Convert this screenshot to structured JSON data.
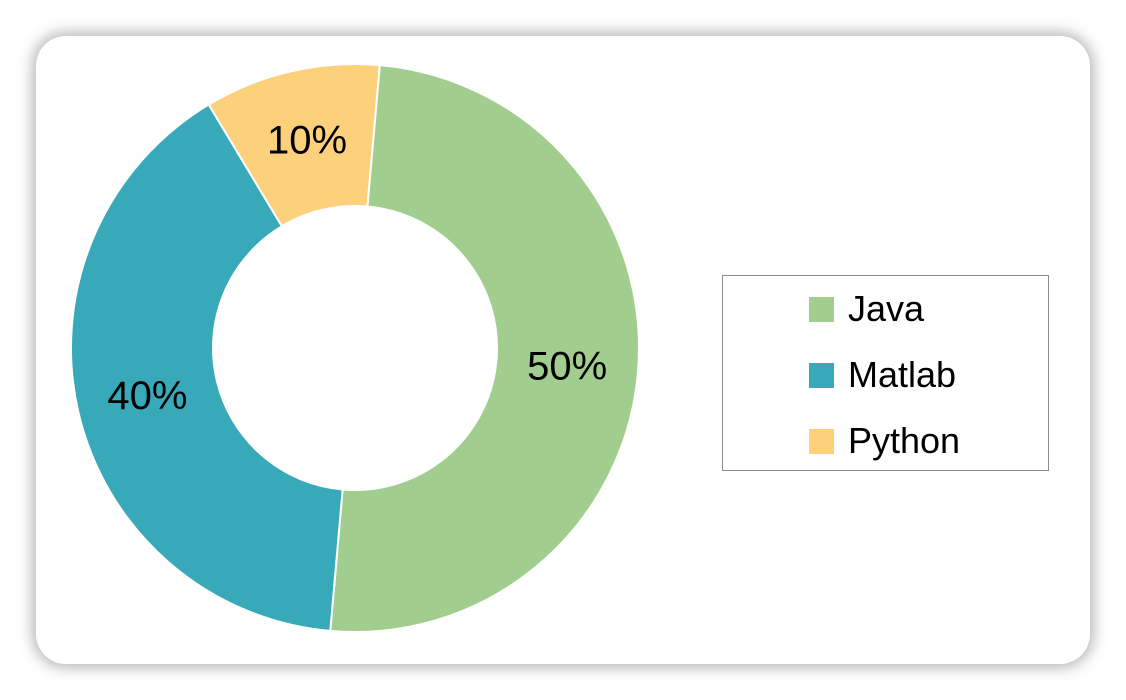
{
  "chart_data": {
    "type": "pie",
    "variant": "donut",
    "categories": [
      "Java",
      "Matlab",
      "Python"
    ],
    "values": [
      50,
      40,
      10
    ],
    "labels": [
      "50%",
      "40%",
      "10%"
    ],
    "colors": [
      "#a1ce8f",
      "#37a9b9",
      "#fdd17c"
    ],
    "legend_position": "right"
  }
}
